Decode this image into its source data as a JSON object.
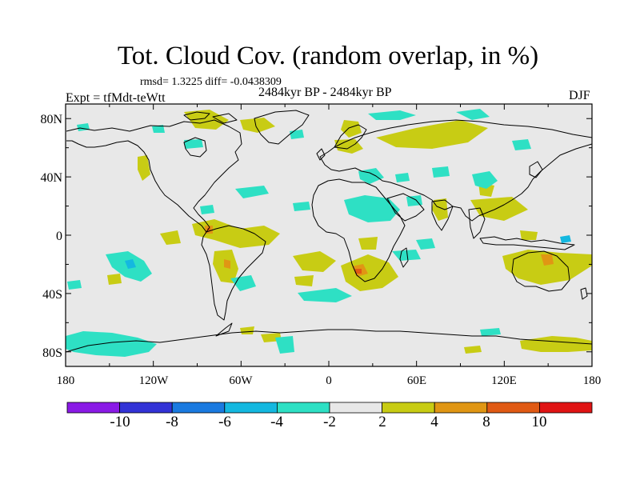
{
  "header": {
    "title": "Tot. Cloud Cov. (random overlap, in %)",
    "stats": "rmsd= 1.3225 diff= -0.0438309",
    "period": "2484kyr BP - 2484kyr BP",
    "experiment": "Expt = tfMdt-teWtt",
    "season": "DJF"
  },
  "map": {
    "projection": "cylindrical-equidistant",
    "lon_range": [
      -180,
      180
    ],
    "lat_range": [
      -90,
      90
    ],
    "background_color": "#e8e8e8",
    "coastline_color": "#000000",
    "lat_labels": [
      "80N",
      "40N",
      "0",
      "40S",
      "80S"
    ],
    "lon_labels": [
      "180",
      "120W",
      "60W",
      "0",
      "60E",
      "120E",
      "180"
    ]
  },
  "colorbar": {
    "labels": [
      "-10",
      "-8",
      "-6",
      "-4",
      "-2",
      "2",
      "4",
      "8",
      "10"
    ],
    "colors": [
      "#8a1ae6",
      "#3333d6",
      "#1a7ae0",
      "#14b8e0",
      "#2ee0c4",
      "#e8e8e8",
      "#c8cc14",
      "#e09614",
      "#e05a14",
      "#e01414"
    ]
  }
}
